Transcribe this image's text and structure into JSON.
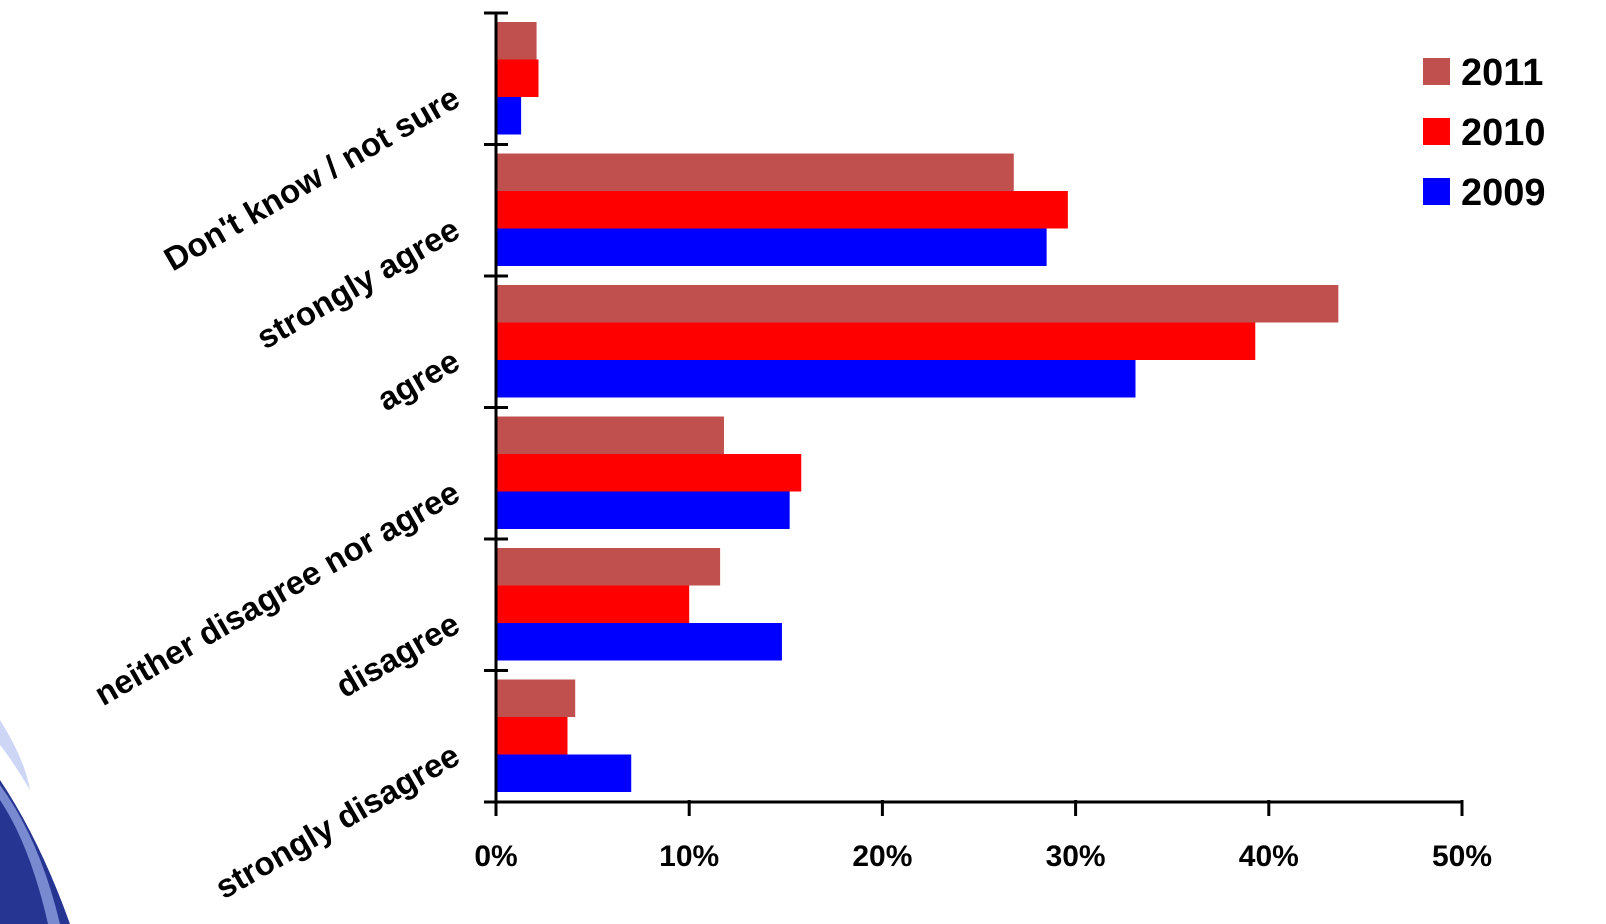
{
  "chart_data": {
    "type": "bar",
    "orientation": "horizontal",
    "categories": [
      "Don't know / not sure",
      "strongly agree",
      "agree",
      "neither disagree nor agree",
      "disagree",
      "strongly disagree"
    ],
    "series": [
      {
        "name": "2011",
        "color": "#c0504d",
        "values": [
          2.1,
          26.8,
          43.6,
          11.8,
          11.6,
          4.1
        ]
      },
      {
        "name": "2010",
        "color": "#ff0000",
        "values": [
          2.2,
          29.6,
          39.3,
          15.8,
          10.0,
          3.7
        ]
      },
      {
        "name": "2009",
        "color": "#0000ff",
        "values": [
          1.3,
          28.5,
          33.1,
          15.2,
          14.8,
          7.0
        ]
      }
    ],
    "x_ticks": [
      "0%",
      "10%",
      "20%",
      "30%",
      "40%",
      "50%"
    ],
    "xlim": [
      0,
      50
    ],
    "legend": [
      "2011",
      "2010",
      "2009"
    ],
    "legend_position": "top-right",
    "grid": false,
    "decoration_color": "#1a2a8c"
  }
}
